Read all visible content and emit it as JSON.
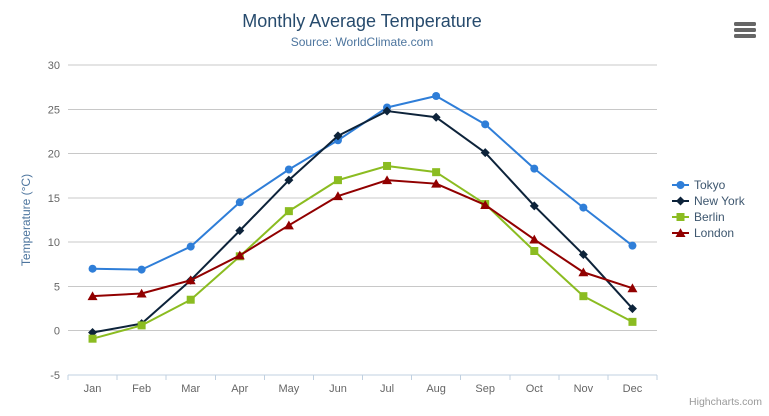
{
  "chart_data": {
    "type": "line",
    "title": "Monthly Average Temperature",
    "subtitle": "Source: WorldClimate.com",
    "xlabel": "",
    "ylabel": "Temperature (°C)",
    "categories": [
      "Jan",
      "Feb",
      "Mar",
      "Apr",
      "May",
      "Jun",
      "Jul",
      "Aug",
      "Sep",
      "Oct",
      "Nov",
      "Dec"
    ],
    "ylim": [
      -5,
      30
    ],
    "ytick_step": 5,
    "grid": true,
    "legend_position": "right",
    "series": [
      {
        "name": "Tokyo",
        "color": "#2f7ed8",
        "marker": "circle",
        "values": [
          7.0,
          6.9,
          9.5,
          14.5,
          18.2,
          21.5,
          25.2,
          26.5,
          23.3,
          18.3,
          13.9,
          9.6
        ]
      },
      {
        "name": "New York",
        "color": "#0d233a",
        "marker": "diamond",
        "values": [
          -0.2,
          0.8,
          5.7,
          11.3,
          17.0,
          22.0,
          24.8,
          24.1,
          20.1,
          14.1,
          8.6,
          2.5
        ]
      },
      {
        "name": "Berlin",
        "color": "#8bbc21",
        "marker": "square",
        "values": [
          -0.9,
          0.6,
          3.5,
          8.4,
          13.5,
          17.0,
          18.6,
          17.9,
          14.3,
          9.0,
          3.9,
          1.0
        ]
      },
      {
        "name": "London",
        "color": "#910000",
        "marker": "triangle",
        "values": [
          3.9,
          4.2,
          5.7,
          8.5,
          11.9,
          15.2,
          17.0,
          16.6,
          14.2,
          10.3,
          6.6,
          4.8
        ]
      }
    ],
    "colors": {
      "title": "#274b6d",
      "subtitle": "#4d759e",
      "axis_label": "#666666",
      "axis_line": "#c0d0e0",
      "gridline": "#c8c8c8",
      "legend_text": "#3e576f",
      "credits": "#999999"
    }
  },
  "credits": {
    "label": "Highcharts.com"
  }
}
